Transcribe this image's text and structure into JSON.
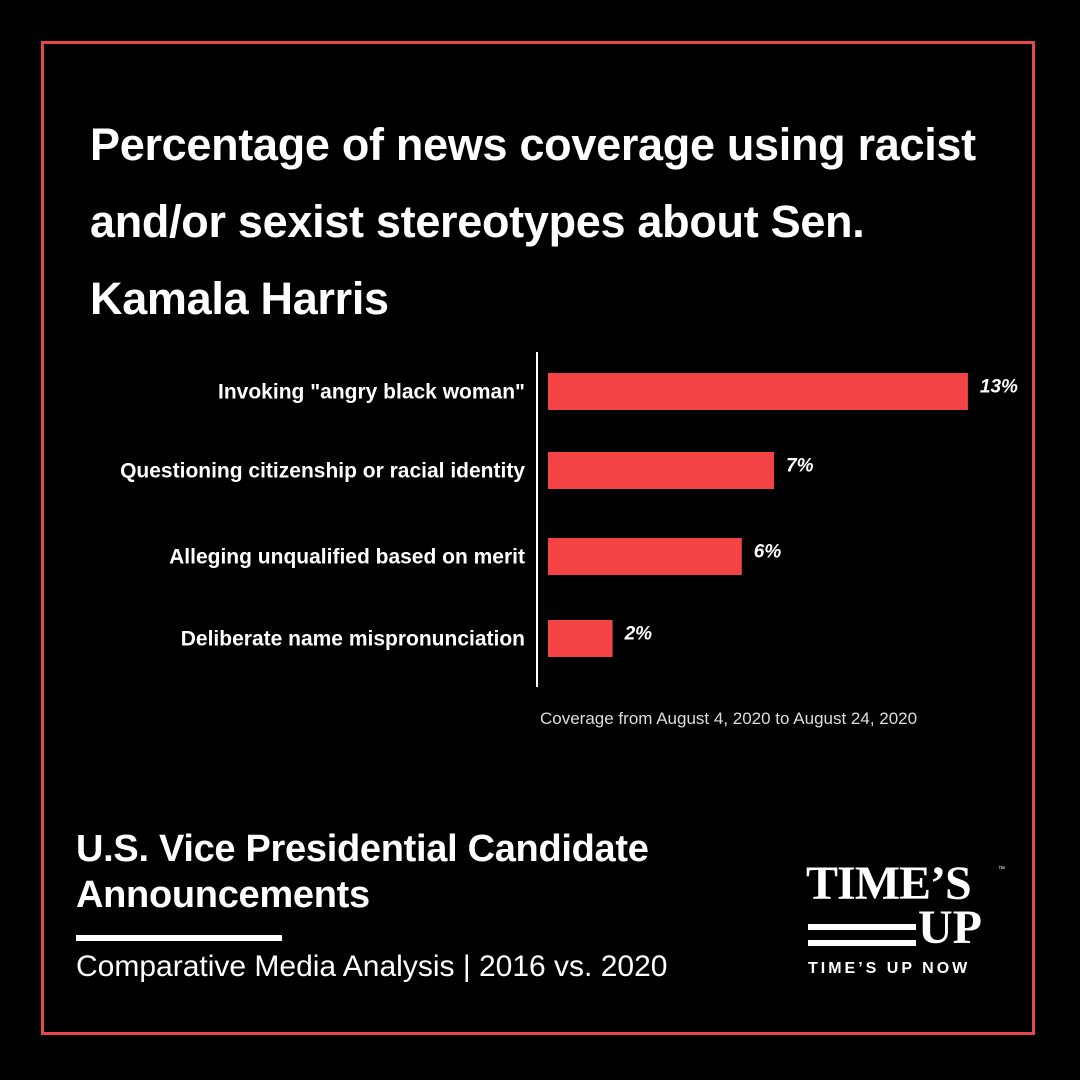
{
  "title": "Percentage of news coverage using racist and/or sexist stereotypes about Sen. Kamala Harris",
  "note": "Coverage from August 4, 2020 to August 24, 2020",
  "subtitle": "U.S. Vice Presidential Candidate Announcements",
  "subtitle2": "Comparative Media Analysis | 2016 vs. 2020",
  "logo": {
    "line1": "TIME’S",
    "line2": "UP",
    "tagline": "TIME’S UP NOW",
    "tm": "™"
  },
  "colors": {
    "bar": "#f44345",
    "frame": "#e4484b",
    "background": "#000000"
  },
  "chart_data": {
    "type": "bar",
    "orientation": "horizontal",
    "categories": [
      "Invoking \"angry black woman\"",
      "Questioning citizenship or racial identity",
      "Alleging unqualified based on merit",
      "Deliberate name mispronunciation"
    ],
    "values": [
      13,
      7,
      6,
      2
    ],
    "labels": [
      "13%",
      "7%",
      "6%",
      "2%"
    ],
    "unit": "%",
    "grid": false
  }
}
